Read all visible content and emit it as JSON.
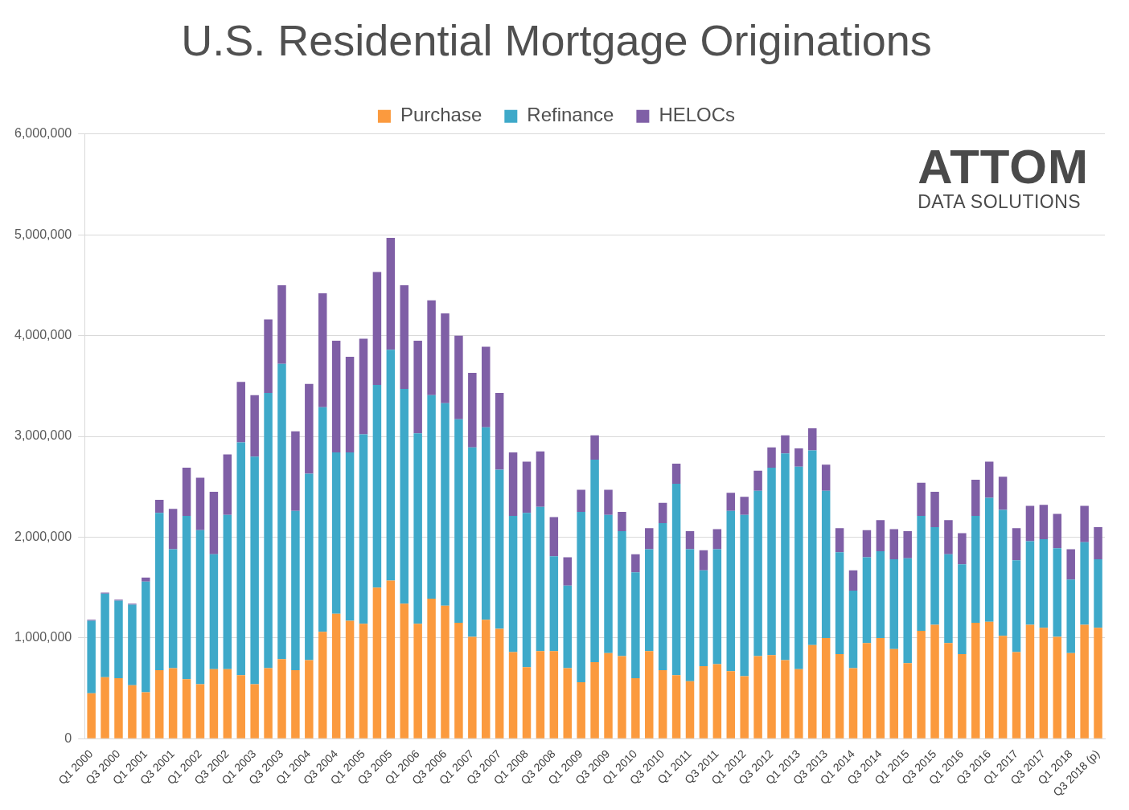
{
  "chart_data": {
    "type": "bar",
    "title": "U.S. Residential Mortgage Originations",
    "annotations": [
      "ATTOM",
      "DATA SOLUTIONS"
    ],
    "stacked": true,
    "grid": true,
    "legend": "top",
    "categories": [
      "Q1 2000",
      null,
      "Q3 2000",
      null,
      "Q1 2001",
      null,
      "Q3 2001",
      null,
      "Q1 2002",
      null,
      "Q3 2002",
      null,
      "Q1 2003",
      null,
      "Q3 2003",
      null,
      "Q1 2004",
      null,
      "Q3 2004",
      null,
      "Q1 2005",
      null,
      "Q3 2005",
      null,
      "Q1 2006",
      null,
      "Q3 2006",
      null,
      "Q1 2007",
      null,
      "Q3 2007",
      null,
      "Q1 2008",
      null,
      "Q3 2008",
      null,
      "Q1 2009",
      null,
      "Q3 2009",
      null,
      "Q1 2010",
      null,
      "Q3 2010",
      null,
      "Q1 2011",
      null,
      "Q3 2011",
      null,
      "Q1 2012",
      null,
      "Q3 2012",
      null,
      "Q1 2013",
      null,
      "Q3 2013",
      null,
      "Q1 2014",
      null,
      "Q3 2014",
      null,
      "Q1 2015",
      null,
      "Q3 2015",
      null,
      "Q1 2016",
      null,
      "Q3 2016",
      null,
      "Q1 2017",
      null,
      "Q3 2017",
      null,
      "Q1 2018",
      null,
      "Q3 2018 (p)"
    ],
    "series": [
      {
        "name": "Purchase",
        "color": "#fb9a3e",
        "values": [
          450000,
          610000,
          600000,
          530000,
          460000,
          680000,
          700000,
          590000,
          540000,
          690000,
          690000,
          630000,
          540000,
          700000,
          790000,
          680000,
          780000,
          1060000,
          1240000,
          1170000,
          1140000,
          1500000,
          1570000,
          1340000,
          1140000,
          1390000,
          1320000,
          1150000,
          1010000,
          1180000,
          1090000,
          860000,
          710000,
          870000,
          870000,
          700000,
          560000,
          760000,
          850000,
          820000,
          600000,
          870000,
          680000,
          630000,
          570000,
          720000,
          740000,
          670000,
          620000,
          820000,
          830000,
          780000,
          690000,
          930000,
          1000000,
          840000,
          700000,
          950000,
          1000000,
          890000,
          750000,
          1070000,
          1130000,
          950000,
          840000,
          1150000,
          1160000,
          1020000,
          860000,
          1130000,
          1100000,
          1010000,
          850000,
          1130000,
          1100000
        ]
      },
      {
        "name": "Refinance",
        "color": "#3ea9c9",
        "values": [
          720000,
          830000,
          770000,
          800000,
          1100000,
          1560000,
          1180000,
          1620000,
          1530000,
          1140000,
          1530000,
          2310000,
          2260000,
          2730000,
          2930000,
          1580000,
          1850000,
          2230000,
          1600000,
          1670000,
          1880000,
          2010000,
          2290000,
          2130000,
          1890000,
          2020000,
          2010000,
          2020000,
          1880000,
          1910000,
          1580000,
          1350000,
          1530000,
          1430000,
          940000,
          820000,
          1690000,
          2010000,
          1370000,
          1240000,
          1050000,
          1010000,
          1460000,
          1900000,
          1310000,
          950000,
          1140000,
          1590000,
          1600000,
          1640000,
          1860000,
          2050000,
          2010000,
          1930000,
          1460000,
          1010000,
          770000,
          850000,
          860000,
          890000,
          1040000,
          1140000,
          970000,
          880000,
          890000,
          1060000,
          1230000,
          1250000,
          910000,
          830000,
          880000,
          880000,
          730000,
          820000,
          680000
        ]
      },
      {
        "name": "HELOCs",
        "color": "#7f5fa6",
        "values": [
          10000,
          10000,
          10000,
          10000,
          40000,
          130000,
          400000,
          480000,
          520000,
          620000,
          600000,
          600000,
          610000,
          730000,
          780000,
          790000,
          890000,
          1130000,
          1110000,
          950000,
          950000,
          1120000,
          1110000,
          1030000,
          920000,
          940000,
          890000,
          830000,
          740000,
          800000,
          760000,
          630000,
          510000,
          550000,
          390000,
          280000,
          220000,
          240000,
          250000,
          190000,
          180000,
          210000,
          200000,
          200000,
          180000,
          200000,
          200000,
          180000,
          180000,
          200000,
          200000,
          180000,
          180000,
          220000,
          260000,
          240000,
          200000,
          270000,
          310000,
          300000,
          270000,
          330000,
          350000,
          340000,
          310000,
          360000,
          360000,
          330000,
          320000,
          350000,
          340000,
          340000,
          300000,
          360000,
          320000
        ]
      }
    ],
    "ylim": [
      0,
      6000000
    ],
    "yticks": [
      0,
      {
        "value": 1000000,
        "label": "1,000,000"
      },
      {
        "value": 2000000,
        "label": "2,000,000"
      },
      {
        "value": 3000000,
        "label": "3,000,000"
      },
      {
        "value": 4000000,
        "label": "4,000,000"
      },
      {
        "value": 5000000,
        "label": "5,000,000"
      },
      {
        "value": 6000000,
        "label": "6,000,000"
      }
    ]
  }
}
